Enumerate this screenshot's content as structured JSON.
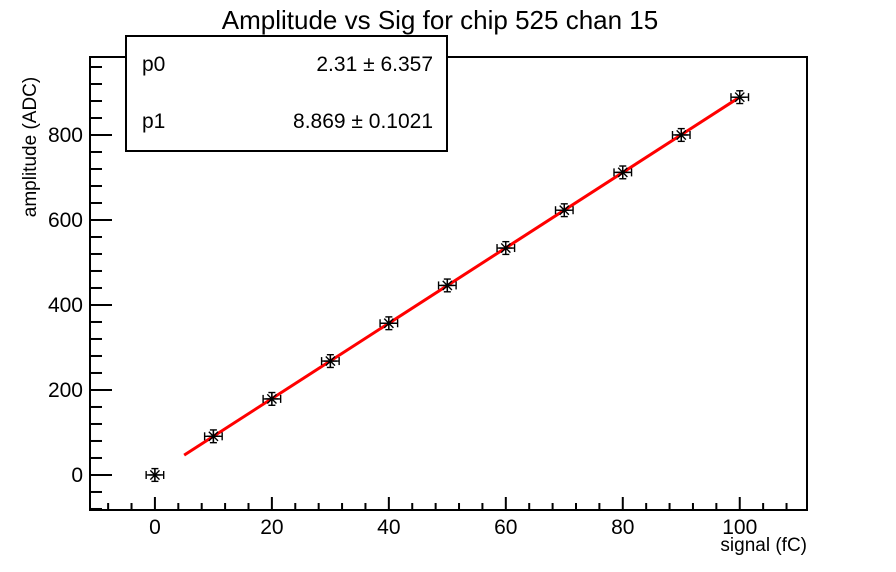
{
  "window": {
    "background": "#ffffff",
    "foreground": "#000000"
  },
  "chart_data": {
    "type": "scatter",
    "title": "Amplitude vs Sig for chip 525 chan 15",
    "xlabel": "signal (fC)",
    "ylabel": "amplitude (ADC)",
    "xlim": [
      -11.1,
      111.5
    ],
    "ylim": [
      -82.4,
      983.5
    ],
    "x_major_ticks": [
      0,
      20,
      40,
      60,
      80,
      100
    ],
    "x_minor_step": 4,
    "y_major_ticks": [
      0,
      200,
      400,
      600,
      800
    ],
    "y_minor_step": 40,
    "grid": false,
    "legend_position": "none",
    "points": {
      "x": [
        0,
        10,
        20,
        30,
        40,
        50,
        60,
        70,
        80,
        90,
        100
      ],
      "y": [
        0,
        91,
        179,
        268,
        357,
        446,
        534,
        623,
        712,
        800,
        889
      ],
      "xerr": 1.5,
      "yerr": 15,
      "marker": "asterisk",
      "color": "#000000"
    },
    "fit": {
      "p0": 2.31,
      "p0_err": 6.357,
      "p1": 8.869,
      "p1_err": 0.1021,
      "x_start": 5,
      "x_end": 100,
      "color": "#ff0000"
    }
  },
  "stats_box": {
    "rows": [
      {
        "name": "p0",
        "value": "2.31 ± 6.357"
      },
      {
        "name": "p1",
        "value": "8.869 ± 0.1021"
      }
    ]
  }
}
